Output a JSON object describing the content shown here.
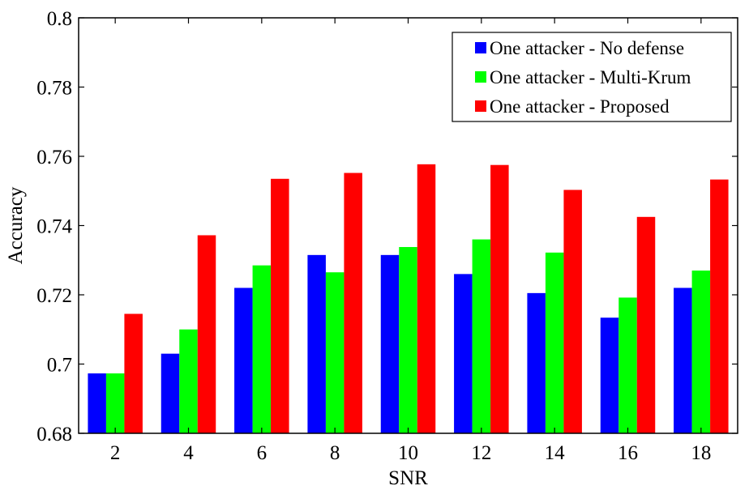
{
  "chart_data": {
    "type": "bar",
    "title": "",
    "xlabel": "SNR",
    "ylabel": "Accuracy",
    "categories": [
      "2",
      "4",
      "6",
      "8",
      "10",
      "12",
      "14",
      "16",
      "18"
    ],
    "ylim": [
      0.68,
      0.8
    ],
    "yticks": [
      "0.68",
      "0.7",
      "0.72",
      "0.74",
      "0.76",
      "0.78",
      "0.8"
    ],
    "grid": false,
    "legend_position": "top-right",
    "series": [
      {
        "name": "One attacker - No defense",
        "color": "#0000FF",
        "values": [
          0.6973,
          0.703,
          0.722,
          0.7315,
          0.7315,
          0.726,
          0.7205,
          0.7134,
          0.722
        ]
      },
      {
        "name": "One attacker - Multi-Krum",
        "color": "#00FF00",
        "values": [
          0.6973,
          0.71,
          0.7285,
          0.7265,
          0.7338,
          0.736,
          0.7322,
          0.7192,
          0.727
        ]
      },
      {
        "name": "One attacker - Proposed",
        "color": "#FF0000",
        "values": [
          0.7145,
          0.7372,
          0.7535,
          0.7552,
          0.7577,
          0.7575,
          0.7503,
          0.7425,
          0.7533
        ]
      }
    ]
  }
}
